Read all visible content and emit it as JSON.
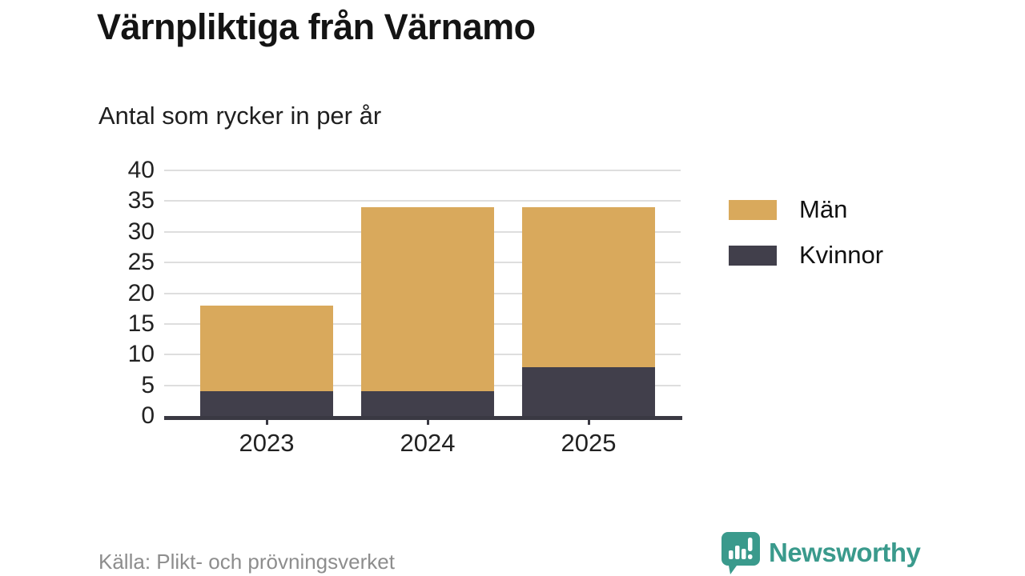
{
  "header": {
    "title": "Värnpliktiga från Värnamo",
    "subtitle": "Antal som rycker in per år"
  },
  "chart_data": {
    "type": "bar",
    "stacked": true,
    "title": "Värnpliktiga från Värnamo",
    "subtitle": "Antal som rycker in per år",
    "categories": [
      "2023",
      "2024",
      "2025"
    ],
    "series": [
      {
        "name": "Män",
        "color": "#d9a95c",
        "values": [
          14,
          30,
          26
        ]
      },
      {
        "name": "Kvinnor",
        "color": "#413f4b",
        "values": [
          4,
          4,
          8
        ]
      }
    ],
    "stack_totals": [
      18,
      34,
      34
    ],
    "xlabel": "",
    "ylabel": "",
    "ylim": [
      0,
      40
    ],
    "ytick_step": 5,
    "yticks": [
      0,
      5,
      10,
      15,
      20,
      25,
      30,
      35,
      40
    ],
    "grid": true,
    "legend_position": "right-top"
  },
  "footer": {
    "source": "Källa: Plikt- och prövningsverket",
    "brand_name": "Newsworthy"
  },
  "colors": {
    "men": "#d9a95c",
    "women": "#413f4b",
    "axis": "#3a3943",
    "grid": "#dedede",
    "brand_teal": "#3a9a8c",
    "muted_text": "#8d8d8d"
  }
}
